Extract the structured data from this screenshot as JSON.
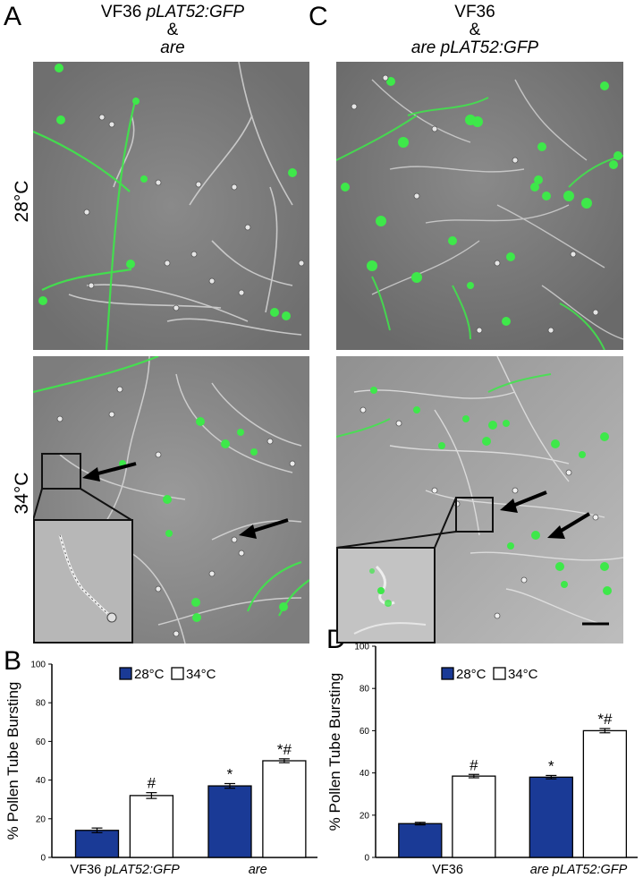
{
  "panels": {
    "A": "A",
    "B": "B",
    "C": "C",
    "D": "D"
  },
  "column_titles": {
    "A": {
      "line1_prefix": "VF36 ",
      "line1_italic": "pLAT52:GFP",
      "line2": "&",
      "line3_italic": "are"
    },
    "C": {
      "line1": "VF36",
      "line2": "&",
      "line3_italic": "are pLAT52:GFP"
    }
  },
  "row_labels": {
    "top": "28°C",
    "bottom": "34°C"
  },
  "colors": {
    "bar_28": "#1a3a96",
    "bar_34": "#ffffff",
    "micrograph_bg": "#7c7c7c",
    "gfp": "#3ee84a"
  },
  "chart_data": [
    {
      "type": "bar",
      "panel": "B",
      "ylabel": "% Pollen Tube Bursting",
      "ylim": [
        0,
        100
      ],
      "yticks": [
        0,
        20,
        40,
        60,
        80,
        100
      ],
      "legend": [
        "28°C",
        "34°C"
      ],
      "legend_position": "top-center",
      "categories": [
        {
          "prefix": "VF36 ",
          "italic": "pLAT52:GFP"
        },
        {
          "prefix": "",
          "italic": "are"
        }
      ],
      "series": [
        {
          "name": "28°C",
          "values": [
            14,
            37
          ],
          "errors": [
            1.2,
            1.2
          ],
          "marks": [
            "",
            "*"
          ]
        },
        {
          "name": "34°C",
          "values": [
            32,
            50
          ],
          "errors": [
            1.5,
            1.0
          ],
          "marks": [
            "#",
            "*#"
          ]
        }
      ]
    },
    {
      "type": "bar",
      "panel": "D",
      "ylabel": "% Pollen Tube Bursting",
      "ylim": [
        0,
        100
      ],
      "yticks": [
        0,
        20,
        40,
        60,
        80,
        100
      ],
      "legend": [
        "28°C",
        "34°C"
      ],
      "legend_position": "top-center",
      "categories": [
        {
          "prefix": "VF36",
          "italic": ""
        },
        {
          "prefix": "",
          "italic": "are pLAT52:GFP"
        }
      ],
      "series": [
        {
          "name": "28°C",
          "values": [
            16,
            38
          ],
          "errors": [
            0.6,
            0.8
          ],
          "marks": [
            "",
            "*"
          ]
        },
        {
          "name": "34°C",
          "values": [
            38.5,
            60
          ],
          "errors": [
            0.8,
            1.0
          ],
          "marks": [
            "#",
            "*#"
          ]
        }
      ]
    }
  ]
}
